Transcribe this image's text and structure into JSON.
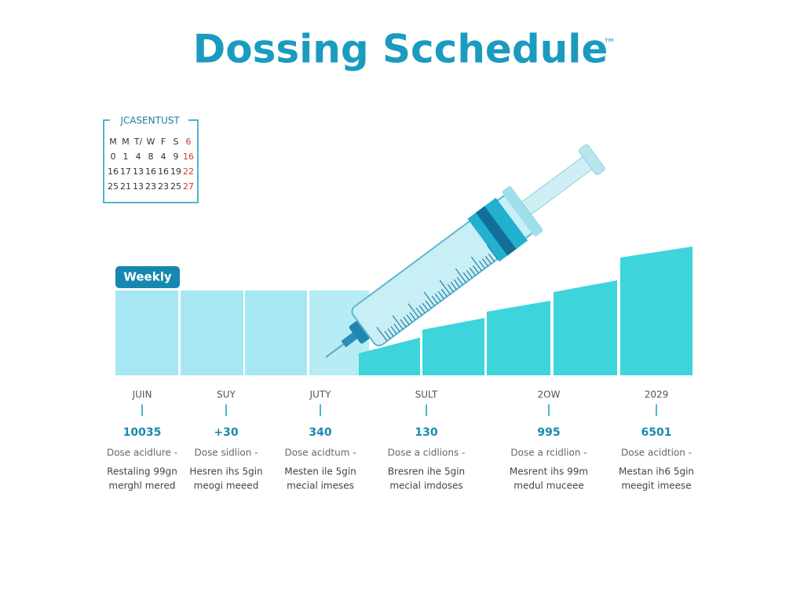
{
  "header": {
    "title": "Dossing Scchedule",
    "mark": "™"
  },
  "calendar": {
    "title": "JCASENTUST",
    "rows": [
      [
        "M",
        "M",
        "T/",
        "W",
        "F",
        "S",
        "6"
      ],
      [
        "0",
        "1",
        "4",
        "8",
        "4",
        "9",
        "16"
      ],
      [
        "16",
        "17",
        "13",
        "16",
        "16",
        "19",
        "22"
      ],
      [
        "25",
        "21",
        "13",
        "23",
        "23",
        "25",
        "27"
      ]
    ]
  },
  "badge": "Weekly",
  "columns": [
    {
      "label": "JUIN",
      "value": "10035",
      "lines": [
        "Dose acidlure -",
        "Restaling 99gn",
        "merghl mered"
      ]
    },
    {
      "label": "SUY",
      "value": "+30",
      "lines": [
        "Dose sidlion -",
        "Hesren ihs 5gin",
        "meogi meeed"
      ]
    },
    {
      "label": "JUTY",
      "value": "340",
      "lines": [
        "Dose acidtum -",
        "Mesten ile 5gin",
        "mecial imeses"
      ]
    },
    {
      "label": "SULT",
      "value": "130",
      "lines": [
        "Dose a cidlions -",
        "Bresren ihe 5gin",
        "mecial imdoses"
      ]
    },
    {
      "label": "2OW",
      "value": "995",
      "lines": [
        "Dose a rcidlion -",
        "Mesrent ihs 99m",
        "medul muceee"
      ]
    },
    {
      "label": "2029",
      "value": "6501",
      "lines": [
        "Dose acidtion -",
        "Mestan ih6 5gin",
        "meegit imeese"
      ]
    }
  ]
}
